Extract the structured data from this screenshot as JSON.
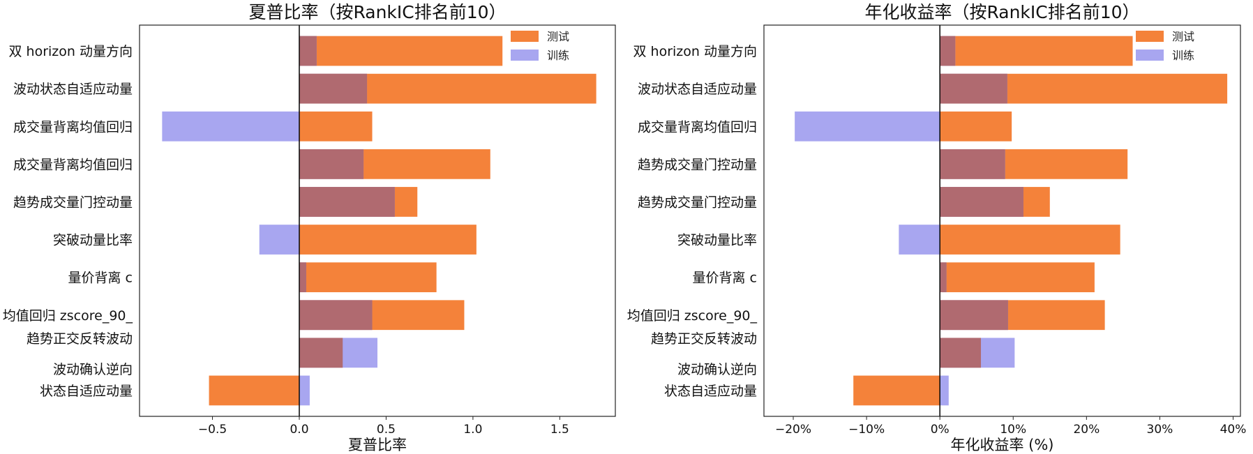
{
  "colors": {
    "test": "#f4823a",
    "train": "#a8a6f0",
    "overlap": "#b06a70",
    "axis": "#222222",
    "zero": "#111111"
  },
  "chart_data": [
    {
      "type": "bar",
      "orientation": "horizontal",
      "title": "夏普比率（按RankIC排名前10）",
      "xlabel": "夏普比率",
      "ylabel": "",
      "xlim": [
        -0.92,
        1.82
      ],
      "xticks": [
        -0.5,
        0.0,
        0.5,
        1.0,
        1.5
      ],
      "xtick_labels": [
        "−0.5",
        "0.0",
        "0.5",
        "1.0",
        "1.5"
      ],
      "grid": false,
      "legend": "top-right",
      "categories": [
        "双 horizon 动量方向",
        "波动状态自适应动量",
        "成交量背离均值回归",
        "成交量背离均值回归",
        "趋势成交量门控动量",
        "突破动量比率",
        "量价背离 c",
        "均值回归 zscore_90_",
        "趋势正交反转波动|波动确认逆向",
        "状态自适应动量"
      ],
      "series": [
        {
          "name": "测试",
          "values": [
            1.17,
            1.71,
            0.42,
            1.1,
            0.68,
            1.02,
            0.79,
            0.95,
            0.25,
            -0.52
          ]
        },
        {
          "name": "训练",
          "values": [
            0.1,
            0.39,
            -0.79,
            0.37,
            0.55,
            -0.23,
            0.04,
            0.42,
            0.45,
            0.06
          ]
        }
      ]
    },
    {
      "type": "bar",
      "orientation": "horizontal",
      "title": "年化收益率（按RankIC排名前10）",
      "xlabel": "年化收益率 (%)",
      "ylabel": "",
      "xlim": [
        -24,
        41
      ],
      "xticks": [
        -20,
        -10,
        0,
        10,
        20,
        30,
        40
      ],
      "xtick_labels": [
        "−20%",
        "−10%",
        "0%",
        "10%",
        "20%",
        "30%",
        "40%"
      ],
      "grid": false,
      "legend": "top-right",
      "categories": [
        "双 horizon 动量方向",
        "波动状态自适应动量",
        "成交量背离均值回归",
        "趋势成交量门控动量",
        "趋势成交量门控动量",
        "突破动量比率",
        "量价背离 c",
        "均值回归 zscore_90_",
        "趋势正交反转波动|波动确认逆向",
        "状态自适应动量"
      ],
      "series": [
        {
          "name": "测试",
          "values": [
            26.3,
            39.2,
            9.8,
            25.6,
            15.0,
            24.6,
            21.1,
            22.5,
            5.6,
            -11.8
          ]
        },
        {
          "name": "训练",
          "values": [
            2.1,
            9.2,
            -19.8,
            8.9,
            11.4,
            -5.6,
            0.9,
            9.3,
            10.2,
            1.2
          ]
        }
      ]
    }
  ]
}
